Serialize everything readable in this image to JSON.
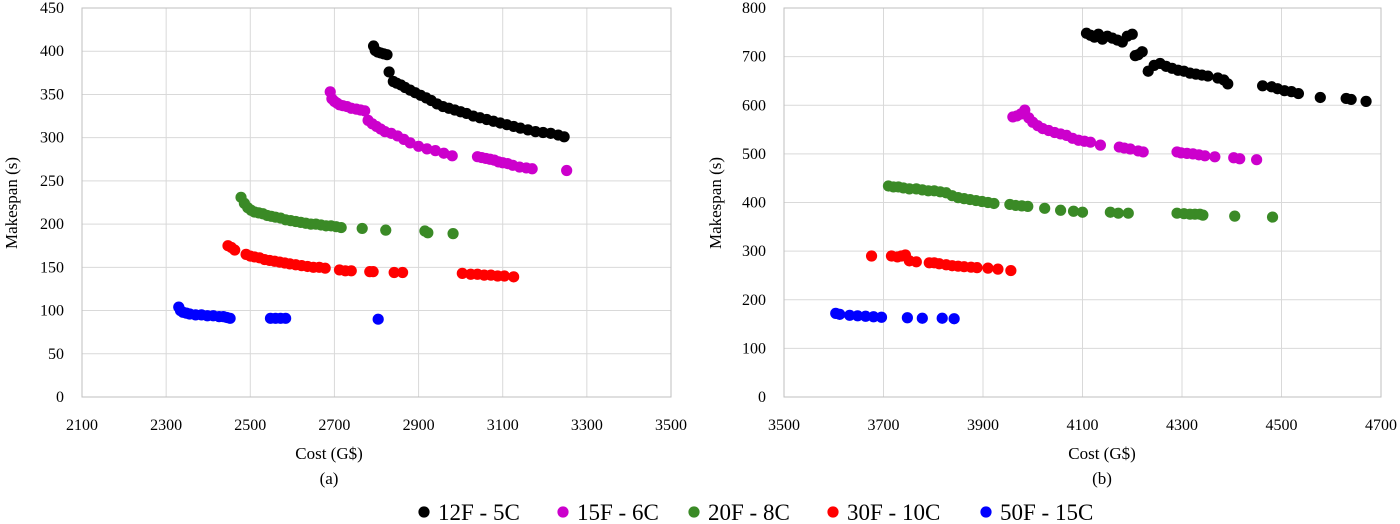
{
  "colors": {
    "12F - 5C": "#000000",
    "15F - 6C": "#cc00cc",
    "20F - 8C": "#3a8a26",
    "30F - 10C": "#ff0000",
    "50F - 15C": "#0000ff",
    "grid": "#d9d9d9",
    "frame": "#bfbfbf"
  },
  "legend": [
    "12F - 5C",
    "15F - 6C",
    "20F - 8C",
    "30F - 10C",
    "50F - 15C"
  ],
  "chart_data": [
    {
      "type": "scatter",
      "panel_label": "(a)",
      "title": "",
      "xlabel": "Cost (G$)",
      "ylabel": "Makespan (s)",
      "xlim": [
        2100,
        3500
      ],
      "ylim": [
        0,
        450
      ],
      "xticks": [
        2100,
        2300,
        2500,
        2700,
        2900,
        3100,
        3300,
        3500
      ],
      "yticks": [
        0,
        50,
        100,
        150,
        200,
        250,
        300,
        350,
        400,
        450
      ],
      "grid": true,
      "series": [
        {
          "name": "12F - 5C",
          "x": [
            2793,
            2797,
            2803,
            2810,
            2817,
            2825,
            2830,
            2840,
            2848,
            2858,
            2868,
            2880,
            2892,
            2905,
            2918,
            2930,
            2944,
            2958,
            2972,
            2986,
            3000,
            3014,
            3030,
            3046,
            3062,
            3078,
            3094,
            3110,
            3126,
            3142,
            3160,
            3178,
            3196,
            3214,
            3232,
            3246
          ],
          "y": [
            406,
            401,
            399,
            398,
            397,
            396,
            376,
            365,
            363,
            361,
            358,
            355,
            352,
            349,
            346,
            343,
            339,
            336,
            334,
            332,
            330,
            328,
            325,
            323,
            321,
            319,
            317,
            315,
            313,
            311,
            309,
            307,
            306,
            305,
            303,
            301
          ]
        },
        {
          "name": "15F - 6C",
          "x": [
            2690,
            2694,
            2700,
            2706,
            2712,
            2720,
            2730,
            2740,
            2752,
            2762,
            2772,
            2780,
            2790,
            2800,
            2810,
            2820,
            2835,
            2850,
            2865,
            2880,
            2900,
            2920,
            2940,
            2960,
            2980,
            3040,
            3050,
            3060,
            3070,
            3080,
            3090,
            3100,
            3112,
            3124,
            3140,
            3156,
            3170,
            3252
          ],
          "y": [
            353,
            345,
            342,
            340,
            338,
            337,
            336,
            334,
            333,
            332,
            331,
            320,
            316,
            313,
            310,
            307,
            305,
            302,
            298,
            294,
            290,
            287,
            285,
            282,
            279,
            278,
            277,
            276,
            275,
            274,
            272,
            271,
            270,
            268,
            266,
            265,
            264,
            262
          ]
        },
        {
          "name": "20F - 8C",
          "x": [
            2478,
            2486,
            2494,
            2502,
            2510,
            2520,
            2530,
            2540,
            2550,
            2560,
            2572,
            2584,
            2596,
            2608,
            2620,
            2632,
            2644,
            2656,
            2668,
            2680,
            2692,
            2704,
            2716,
            2766,
            2822,
            2915,
            2922,
            2982
          ],
          "y": [
            231,
            224,
            219,
            216,
            214,
            213,
            212,
            210,
            209,
            208,
            207,
            205,
            204,
            203,
            202,
            201,
            200,
            200,
            199,
            198,
            198,
            197,
            196,
            195,
            193,
            192,
            190,
            189
          ]
        },
        {
          "name": "30F - 10C",
          "x": [
            2447,
            2455,
            2463,
            2490,
            2500,
            2510,
            2522,
            2534,
            2546,
            2558,
            2570,
            2582,
            2594,
            2608,
            2622,
            2636,
            2650,
            2664,
            2678,
            2712,
            2726,
            2740,
            2784,
            2792,
            2842,
            2862,
            3004,
            3024,
            3040,
            3056,
            3072,
            3088,
            3104,
            3126
          ],
          "y": [
            175,
            173,
            170,
            165,
            163,
            162,
            161,
            159,
            158,
            157,
            156,
            155,
            154,
            153,
            152,
            151,
            150,
            150,
            149,
            147,
            146,
            146,
            145,
            145,
            144,
            144,
            143,
            142,
            142,
            141,
            141,
            140,
            140,
            139
          ]
        },
        {
          "name": "50F - 15C",
          "x": [
            2330,
            2334,
            2340,
            2348,
            2356,
            2370,
            2384,
            2398,
            2412,
            2426,
            2436,
            2444,
            2452,
            2548,
            2560,
            2572,
            2584,
            2804
          ],
          "y": [
            104,
            100,
            98,
            97,
            96,
            95,
            95,
            94,
            94,
            93,
            93,
            92,
            91,
            91,
            91,
            91,
            91,
            90
          ]
        }
      ]
    },
    {
      "type": "scatter",
      "panel_label": "(b)",
      "title": "",
      "xlabel": "Cost (G$)",
      "ylabel": "Makespan (s)",
      "xlim": [
        3500,
        4700
      ],
      "ylim": [
        0,
        800
      ],
      "xticks": [
        3500,
        3700,
        3900,
        4100,
        4300,
        4500,
        4700
      ],
      "yticks": [
        0,
        100,
        200,
        300,
        400,
        500,
        600,
        700,
        800
      ],
      "grid": true,
      "series": [
        {
          "name": "12F - 5C",
          "x": [
            4108,
            4116,
            4124,
            4132,
            4140,
            4150,
            4160,
            4170,
            4180,
            4190,
            4200,
            4206,
            4212,
            4220,
            4232,
            4244,
            4256,
            4268,
            4280,
            4292,
            4304,
            4316,
            4328,
            4340,
            4352,
            4372,
            4384,
            4392,
            4462,
            4480,
            4492,
            4506,
            4520,
            4534,
            4578,
            4630,
            4640,
            4670
          ],
          "y": [
            748,
            744,
            740,
            746,
            736,
            742,
            738,
            734,
            730,
            742,
            746,
            702,
            704,
            710,
            670,
            682,
            686,
            680,
            676,
            672,
            670,
            666,
            664,
            662,
            660,
            656,
            652,
            644,
            640,
            638,
            634,
            630,
            628,
            624,
            616,
            614,
            612,
            608
          ]
        },
        {
          "name": "15F - 6C",
          "x": [
            3960,
            3968,
            3976,
            3984,
            3992,
            4000,
            4010,
            4020,
            4032,
            4044,
            4056,
            4068,
            4080,
            4092,
            4104,
            4116,
            4136,
            4174,
            4184,
            4196,
            4212,
            4222,
            4290,
            4298,
            4310,
            4322,
            4334,
            4346,
            4366,
            4404,
            4416,
            4450
          ],
          "y": [
            576,
            578,
            582,
            590,
            574,
            565,
            558,
            552,
            548,
            544,
            541,
            538,
            532,
            528,
            526,
            524,
            518,
            514,
            512,
            510,
            506,
            504,
            504,
            502,
            501,
            500,
            498,
            496,
            494,
            492,
            490,
            488
          ]
        },
        {
          "name": "20F - 8C",
          "x": [
            3710,
            3720,
            3730,
            3740,
            3752,
            3766,
            3778,
            3790,
            3802,
            3814,
            3826,
            3838,
            3850,
            3862,
            3874,
            3886,
            3898,
            3910,
            3922,
            3954,
            3966,
            3978,
            3990,
            4024,
            4056,
            4082,
            4100,
            4156,
            4172,
            4192,
            4290,
            4304,
            4316,
            4326,
            4336,
            4342,
            4406,
            4482
          ],
          "y": [
            434,
            432,
            432,
            430,
            428,
            428,
            426,
            424,
            424,
            422,
            420,
            414,
            410,
            408,
            406,
            404,
            402,
            400,
            398,
            396,
            394,
            393,
            392,
            388,
            384,
            382,
            380,
            380,
            378,
            378,
            378,
            377,
            376,
            376,
            376,
            374,
            372,
            370
          ]
        },
        {
          "name": "30F - 10C",
          "x": [
            3676,
            3716,
            3728,
            3736,
            3744,
            3752,
            3766,
            3792,
            3802,
            3812,
            3826,
            3838,
            3850,
            3862,
            3876,
            3888,
            3910,
            3930,
            3956
          ],
          "y": [
            290,
            290,
            288,
            290,
            292,
            280,
            278,
            276,
            276,
            274,
            272,
            270,
            269,
            268,
            267,
            266,
            265,
            263,
            260
          ]
        },
        {
          "name": "50F - 15C",
          "x": [
            3604,
            3612,
            3632,
            3648,
            3664,
            3680,
            3696,
            3748,
            3778,
            3818,
            3842
          ],
          "y": [
            172,
            170,
            168,
            167,
            166,
            165,
            164,
            163,
            162,
            162,
            161
          ]
        }
      ]
    }
  ]
}
